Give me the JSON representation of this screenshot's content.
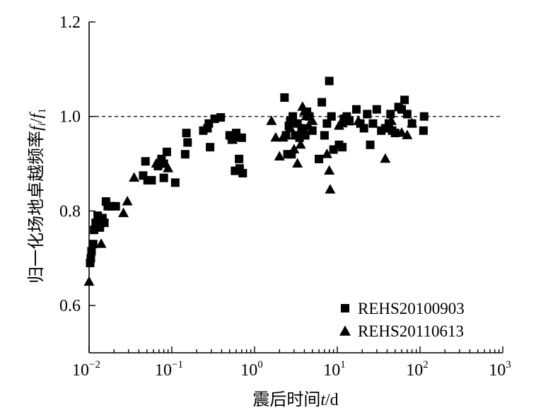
{
  "chart_data": {
    "type": "scatter",
    "xscale": "log",
    "xlim": [
      0.01,
      1000
    ],
    "ylim": [
      0.5,
      1.2
    ],
    "xlabel_main": "震后时间",
    "xlabel_var": "t",
    "xlabel_unit": "/d",
    "ylabel_main": "归一化场地卓越频率",
    "ylabel_var": "f",
    "ylabel_sub": "i",
    "ylabel_var2": "f",
    "ylabel_sub2": "1",
    "xticks": [
      {
        "value": 0.01,
        "base": "10",
        "exp": "−2"
      },
      {
        "value": 0.1,
        "base": "10",
        "exp": "−1"
      },
      {
        "value": 1,
        "base": "10",
        "exp": "0"
      },
      {
        "value": 10,
        "base": "10",
        "exp": "1"
      },
      {
        "value": 100,
        "base": "10",
        "exp": "2"
      },
      {
        "value": 1000,
        "base": "10",
        "exp": "3"
      }
    ],
    "yticks": [
      {
        "value": 0.6,
        "label": "0.6"
      },
      {
        "value": 0.8,
        "label": "0.8"
      },
      {
        "value": 1.0,
        "label": "1.0"
      },
      {
        "value": 1.2,
        "label": "1.2"
      }
    ],
    "reference_line": {
      "y": 1.0,
      "style": "dashed"
    },
    "legend_position": "bottom-right",
    "series": [
      {
        "name": "REHS20100903",
        "marker": "square",
        "points": [
          [
            0.0103,
            0.69
          ],
          [
            0.0105,
            0.7
          ],
          [
            0.0107,
            0.715
          ],
          [
            0.0112,
            0.73
          ],
          [
            0.0115,
            0.76
          ],
          [
            0.012,
            0.775
          ],
          [
            0.0127,
            0.79
          ],
          [
            0.0135,
            0.765
          ],
          [
            0.0142,
            0.78
          ],
          [
            0.0145,
            0.785
          ],
          [
            0.0153,
            0.775
          ],
          [
            0.016,
            0.82
          ],
          [
            0.0168,
            0.81
          ],
          [
            0.0185,
            0.81
          ],
          [
            0.021,
            0.81
          ],
          [
            0.045,
            0.875
          ],
          [
            0.048,
            0.905
          ],
          [
            0.051,
            0.865
          ],
          [
            0.057,
            0.865
          ],
          [
            0.068,
            0.895
          ],
          [
            0.075,
            0.91
          ],
          [
            0.08,
            0.9
          ],
          [
            0.087,
            0.925
          ],
          [
            0.08,
            0.87
          ],
          [
            0.11,
            0.86
          ],
          [
            0.145,
            0.92
          ],
          [
            0.155,
            0.945
          ],
          [
            0.15,
            0.965
          ],
          [
            0.24,
            0.97
          ],
          [
            0.27,
            0.975
          ],
          [
            0.28,
            0.985
          ],
          [
            0.29,
            0.935
          ],
          [
            0.33,
            0.995
          ],
          [
            0.39,
            0.998
          ],
          [
            0.5,
            0.96
          ],
          [
            0.53,
            0.955
          ],
          [
            0.6,
            0.965
          ],
          [
            0.58,
            0.885
          ],
          [
            0.66,
            0.89
          ],
          [
            0.7,
            0.955
          ],
          [
            0.72,
            0.88
          ],
          [
            0.65,
            0.91
          ],
          [
            2.3,
            1.04
          ],
          [
            2.4,
            0.96
          ],
          [
            2.5,
            0.92
          ],
          [
            2.6,
            0.98
          ],
          [
            2.7,
            0.99
          ],
          [
            2.8,
            0.92
          ],
          [
            2.9,
            1.0
          ],
          [
            3.1,
            0.96
          ],
          [
            3.3,
            0.985
          ],
          [
            3.5,
            0.955
          ],
          [
            3.7,
            0.975
          ],
          [
            3.9,
            0.97
          ],
          [
            4.1,
            0.96
          ],
          [
            4.3,
            1.01
          ],
          [
            4.6,
            1.0
          ],
          [
            5.0,
            0.97
          ],
          [
            6.0,
            0.91
          ],
          [
            6.5,
            1.03
          ],
          [
            7.0,
            0.96
          ],
          [
            7.5,
            0.985
          ],
          [
            8.0,
            1.075
          ],
          [
            8.5,
            1.0
          ],
          [
            9.0,
            0.93
          ],
          [
            10.5,
            0.94
          ],
          [
            11.5,
            0.935
          ],
          [
            12.0,
            0.995
          ],
          [
            13.0,
            1.0
          ],
          [
            14.0,
            0.99
          ],
          [
            17.0,
            1.015
          ],
          [
            19.0,
            0.985
          ],
          [
            21.0,
            0.975
          ],
          [
            23.0,
            1.005
          ],
          [
            25.0,
            0.94
          ],
          [
            27.0,
            0.985
          ],
          [
            30.0,
            1.015
          ],
          [
            34.0,
            0.97
          ],
          [
            38.0,
            0.975
          ],
          [
            42.0,
            0.985
          ],
          [
            44.0,
            1.005
          ],
          [
            46.0,
            0.97
          ],
          [
            50.0,
            0.965
          ],
          [
            55.0,
            1.02
          ],
          [
            60.0,
            1.015
          ],
          [
            65.0,
            1.035
          ],
          [
            70.0,
            1.005
          ],
          [
            80.0,
            0.985
          ],
          [
            110.0,
            0.97
          ],
          [
            112.0,
            1.0
          ]
        ]
      },
      {
        "name": "REHS20110613",
        "marker": "triangle",
        "points": [
          [
            0.01,
            0.65
          ],
          [
            0.014,
            0.73
          ],
          [
            0.026,
            0.795
          ],
          [
            0.029,
            0.82
          ],
          [
            0.035,
            0.87
          ],
          [
            0.065,
            0.9
          ],
          [
            0.09,
            0.89
          ],
          [
            0.54,
            0.95
          ],
          [
            0.62,
            0.955
          ],
          [
            1.6,
            0.99
          ],
          [
            1.8,
            0.955
          ],
          [
            2.0,
            0.915
          ],
          [
            2.2,
            0.955
          ],
          [
            2.4,
            0.96
          ],
          [
            2.7,
            0.975
          ],
          [
            3.0,
            0.93
          ],
          [
            3.3,
            0.9
          ],
          [
            3.6,
            0.94
          ],
          [
            3.8,
            1.02
          ],
          [
            4.0,
            1.01
          ],
          [
            4.2,
            1.0
          ],
          [
            4.5,
            0.98
          ],
          [
            5.0,
            0.99
          ],
          [
            7.5,
            0.92
          ],
          [
            8.0,
            0.885
          ],
          [
            8.2,
            0.845
          ],
          [
            10.5,
            0.98
          ],
          [
            11.5,
            0.985
          ],
          [
            18.0,
            0.99
          ],
          [
            38.0,
            0.91
          ],
          [
            40.0,
            0.975
          ],
          [
            45.0,
            0.99
          ],
          [
            60.0,
            0.965
          ],
          [
            70.0,
            0.96
          ],
          [
            80.0,
            0.985
          ]
        ]
      }
    ]
  }
}
